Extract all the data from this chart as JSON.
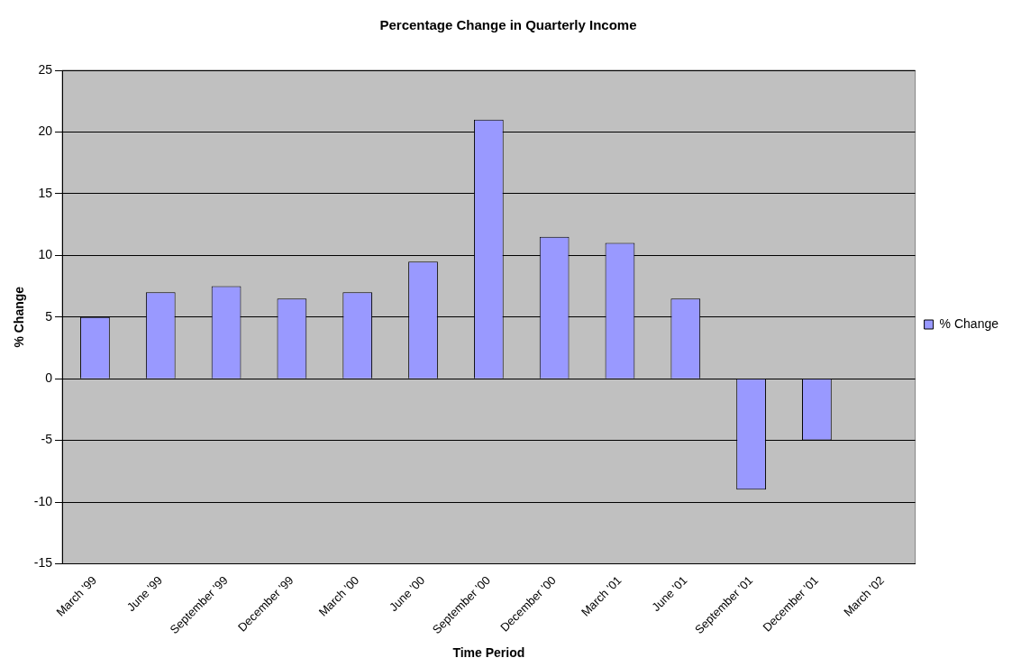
{
  "chart_data": {
    "type": "bar",
    "title": "Percentage Change in Quarterly Income",
    "xlabel": "Time Period",
    "ylabel": "% Change",
    "categories": [
      "March '99",
      "June '99",
      "September '99",
      "December '99",
      "March '00",
      "June '00",
      "September '00",
      "December '00",
      "March '01",
      "June '01",
      "September '01",
      "December '01",
      "March '02"
    ],
    "series": [
      {
        "name": "% Change",
        "color": "#9999ff",
        "values": [
          5,
          7,
          7.5,
          6.5,
          7,
          9.5,
          21,
          11.5,
          11,
          6.5,
          -9,
          -5,
          null
        ]
      }
    ],
    "ylim": [
      -15,
      25
    ],
    "yticks": [
      -15,
      -10,
      -5,
      0,
      5,
      10,
      15,
      20,
      25
    ],
    "grid": "y",
    "legend": "right"
  }
}
